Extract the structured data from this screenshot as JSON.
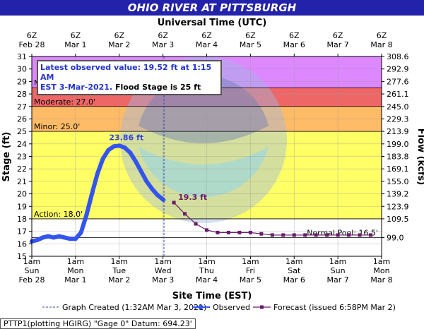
{
  "title": "OHIO RIVER AT PITTSBURGH",
  "top_axis_title": "Universal Time (UTC)",
  "bottom_axis_title": "Site Time (EST)",
  "left_axis_title": "Stage (ft)",
  "right_axis_title": "Flow (kcfs)",
  "info": {
    "line1": "Latest observed value: 19.52 ft at 1:15 AM",
    "line2_blue": "EST 3-Mar-2021. ",
    "line2_black": "Flood Stage is 25 ft"
  },
  "footer": "PTTP1(plotting HGIRG) \"Gage 0\" Datum: 694.23'",
  "legend": {
    "created": "Graph Created (1:32AM Mar 3, 2021)",
    "observed": "Observed",
    "forecast": "Forecast (issued 6:58PM Mar 2)"
  },
  "colors": {
    "title_bar": "#2222aa",
    "major": "#dd88ff",
    "moderate": "#ee6666",
    "minor": "#ffbb66",
    "action": "#ffff66",
    "normal": "#ffffff",
    "observed": "#3355ee",
    "forecast": "#6a1b6a",
    "created_line": "#3344aa"
  },
  "chart_data": {
    "type": "line",
    "title": "OHIO RIVER AT PITTSBURGH",
    "xlabel": "Site Time (EST)",
    "ylabel": "Stage (ft)",
    "y2label": "Flow (kcfs)",
    "ylim": [
      15,
      31
    ],
    "xlim": [
      "2021-02-28 01:00 EST",
      "2021-03-08 01:00 EST"
    ],
    "grid": true,
    "bottom_ticks": [
      {
        "day": "1am",
        "wd": "Sun",
        "date": "Feb 28"
      },
      {
        "day": "1am",
        "wd": "Mon",
        "date": "Mar 1"
      },
      {
        "day": "1am",
        "wd": "Tue",
        "date": "Mar 2"
      },
      {
        "day": "1am",
        "wd": "Wed",
        "date": "Mar 3"
      },
      {
        "day": "1am",
        "wd": "Thu",
        "date": "Mar 4"
      },
      {
        "day": "1am",
        "wd": "Fri",
        "date": "Mar 5"
      },
      {
        "day": "1am",
        "wd": "Sat",
        "date": "Mar 6"
      },
      {
        "day": "1am",
        "wd": "Sun",
        "date": "Mar 7"
      },
      {
        "day": "1am",
        "wd": "Mon",
        "date": "Mar 8"
      }
    ],
    "top_ticks": [
      {
        "time": "6Z",
        "date": "Feb 28"
      },
      {
        "time": "6Z",
        "date": "Mar 1"
      },
      {
        "time": "6Z",
        "date": "Mar 2"
      },
      {
        "time": "6Z",
        "date": "Mar 3"
      },
      {
        "time": "6Z",
        "date": "Mar 4"
      },
      {
        "time": "6Z",
        "date": "Mar 5"
      },
      {
        "time": "6Z",
        "date": "Mar 6"
      },
      {
        "time": "6Z",
        "date": "Mar 7"
      },
      {
        "time": "6Z",
        "date": "Mar 8"
      }
    ],
    "left_ticks": [
      15,
      16,
      17,
      18,
      19,
      20,
      21,
      22,
      23,
      24,
      25,
      26,
      27,
      28,
      29,
      30,
      31
    ],
    "right_ticks": [
      {
        "stage": 16.5,
        "label": "99.0"
      },
      {
        "stage": 18,
        "label": "109.5"
      },
      {
        "stage": 19,
        "label": "123.9"
      },
      {
        "stage": 20,
        "label": "139.2"
      },
      {
        "stage": 21,
        "label": "155.0"
      },
      {
        "stage": 22,
        "label": "169.1"
      },
      {
        "stage": 23,
        "label": "183.8"
      },
      {
        "stage": 24,
        "label": "199.0"
      },
      {
        "stage": 25,
        "label": "213.9"
      },
      {
        "stage": 26,
        "label": "229.3"
      },
      {
        "stage": 27,
        "label": "245.0"
      },
      {
        "stage": 28,
        "label": "261.1"
      },
      {
        "stage": 29,
        "label": "277.6"
      },
      {
        "stage": 30,
        "label": "292.9"
      },
      {
        "stage": 31,
        "label": "308.6"
      }
    ],
    "thresholds": [
      {
        "name": "major",
        "label": "Major: 28.5'",
        "stage": 28.5
      },
      {
        "name": "moderate",
        "label": "Moderate: 27.0'",
        "stage": 27.0
      },
      {
        "name": "minor",
        "label": "Minor: 25.0'",
        "stage": 25.0
      },
      {
        "name": "action",
        "label": "Action: 18.0'",
        "stage": 18.0
      },
      {
        "name": "normal_pool",
        "label": "Normal Pool: 16.5'",
        "stage": 16.5
      }
    ],
    "created_time": "2021-03-03 01:32 EST",
    "series": [
      {
        "name": "Observed",
        "x": [
          "2021-02-28 01:00",
          "2021-02-28 04:00",
          "2021-02-28 07:00",
          "2021-02-28 10:00",
          "2021-02-28 13:00",
          "2021-02-28 16:00",
          "2021-02-28 19:00",
          "2021-02-28 22:00",
          "2021-03-01 01:00",
          "2021-03-01 04:00",
          "2021-03-01 07:00",
          "2021-03-01 10:00",
          "2021-03-01 13:00",
          "2021-03-01 16:00",
          "2021-03-01 19:00",
          "2021-03-01 22:00",
          "2021-03-02 01:00",
          "2021-03-02 04:00",
          "2021-03-02 07:00",
          "2021-03-02 10:00",
          "2021-03-02 13:00",
          "2021-03-02 16:00",
          "2021-03-02 19:00",
          "2021-03-02 22:00",
          "2021-03-03 01:15"
        ],
        "y": [
          16.2,
          16.3,
          16.5,
          16.6,
          16.5,
          16.6,
          16.5,
          16.4,
          16.4,
          16.9,
          18.3,
          20.0,
          21.6,
          22.8,
          23.5,
          23.8,
          23.86,
          23.7,
          23.3,
          22.6,
          21.8,
          21.0,
          20.4,
          19.9,
          19.52
        ]
      },
      {
        "name": "Forecast",
        "x": [
          "2021-03-03 07:00",
          "2021-03-03 13:00",
          "2021-03-03 19:00",
          "2021-03-04 01:00",
          "2021-03-04 07:00",
          "2021-03-04 13:00",
          "2021-03-04 19:00",
          "2021-03-05 01:00",
          "2021-03-05 07:00",
          "2021-03-05 13:00",
          "2021-03-05 19:00",
          "2021-03-06 01:00",
          "2021-03-06 07:00",
          "2021-03-06 13:00",
          "2021-03-06 19:00",
          "2021-03-07 01:00",
          "2021-03-07 07:00",
          "2021-03-07 13:00",
          "2021-03-07 19:00"
        ],
        "y": [
          19.3,
          18.4,
          17.6,
          17.1,
          16.9,
          16.9,
          16.9,
          16.9,
          16.8,
          16.7,
          16.7,
          16.7,
          16.7,
          16.7,
          16.7,
          16.7,
          16.7,
          16.7,
          16.7
        ]
      }
    ],
    "annotations": [
      {
        "label": "23.86 ft",
        "series": "Observed",
        "x": "2021-03-02 01:00",
        "y": 23.86
      },
      {
        "label": "19.3 ft",
        "series": "Forecast",
        "x": "2021-03-03 07:00",
        "y": 19.3
      }
    ]
  }
}
